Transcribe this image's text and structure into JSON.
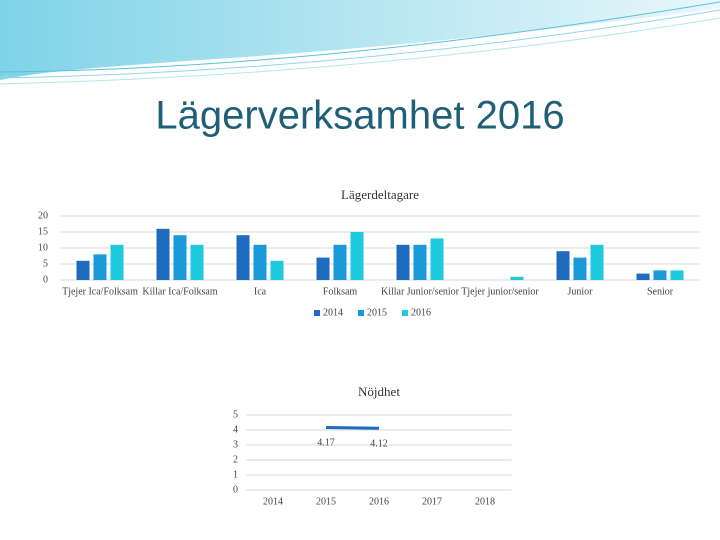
{
  "title": "Lägerverksamhet 2016",
  "chart_data": [
    {
      "type": "bar",
      "title": "Lägerdeltagare",
      "categories": [
        "Tjejer Ica/Folksam",
        "Killar Ica/Folksam",
        "Ica",
        "Folksam",
        "Killar Junior/senior",
        "Tjejer junior/senior",
        "Junior",
        "Senior"
      ],
      "series": [
        {
          "name": "2014",
          "color": "#1f6bbf",
          "values": [
            6,
            16,
            14,
            7,
            11,
            0,
            9,
            2
          ]
        },
        {
          "name": "2015",
          "color": "#1a9ad8",
          "values": [
            8,
            14,
            11,
            11,
            11,
            0,
            7,
            3
          ]
        },
        {
          "name": "2016",
          "color": "#1dcbdc",
          "values": [
            11,
            11,
            6,
            15,
            13,
            1,
            11,
            3
          ]
        }
      ],
      "ylim": [
        0,
        20
      ],
      "yticks": [
        0,
        5,
        10,
        15,
        20
      ],
      "grid": true,
      "legend": "bottom"
    },
    {
      "type": "line",
      "title": "Nöjdhet",
      "categories": [
        "2014",
        "2015",
        "2016",
        "2017",
        "2018"
      ],
      "series": [
        {
          "name": "Nöjdhet",
          "color": "#1f6bbf",
          "values": [
            null,
            4.17,
            4.12,
            null,
            null
          ]
        }
      ],
      "ylim": [
        0,
        5
      ],
      "yticks": [
        0,
        1,
        2,
        3,
        4,
        5
      ],
      "grid": true
    }
  ]
}
